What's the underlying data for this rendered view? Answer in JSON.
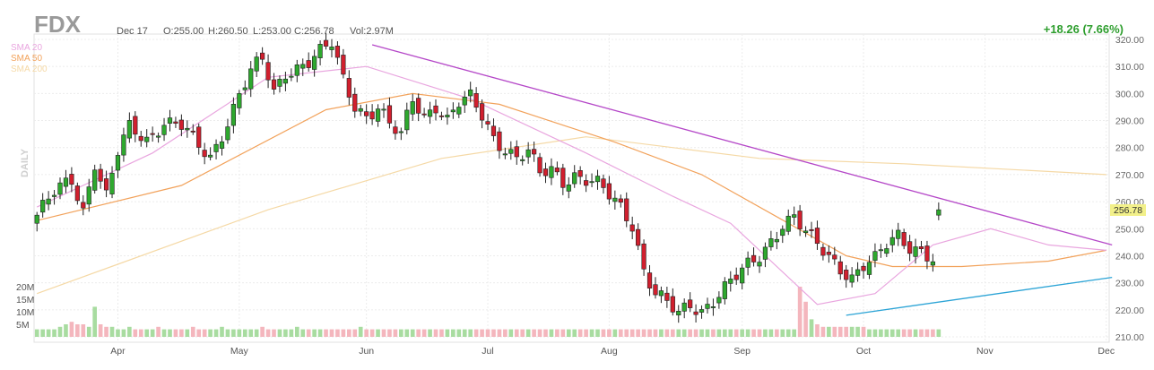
{
  "header": {
    "ticker": "FDX",
    "date": "Dec 17",
    "open": "O:255.00",
    "high": "H:260.50",
    "low": "L:253.00",
    "close": "C:256.78",
    "volume": "Vol:2.97M",
    "change": "+18.26 (7.66%)"
  },
  "legend": [
    {
      "label": "SMA 20",
      "color": "#e9a6df"
    },
    {
      "label": "SMA 50",
      "color": "#f2a25b"
    },
    {
      "label": "SMA 200",
      "color": "#f5d9a6"
    }
  ],
  "side_label": "DAILY",
  "last_price_label": "256.78",
  "colors": {
    "up": "#2ea82e",
    "down": "#d11f2e",
    "vol_up": "#a8dca0",
    "vol_down": "#f4b6bd",
    "trend_down": "#b548c8",
    "trend_up": "#2ca4d6"
  },
  "chart_data": {
    "type": "candlestick",
    "y_ticks": [
      "320.00",
      "310.00",
      "300.00",
      "290.00",
      "280.00",
      "270.00",
      "260.00",
      "250.00",
      "240.00",
      "230.00",
      "220.00",
      "210.00"
    ],
    "volume_ticks": [
      "20M",
      "15M",
      "10M",
      "5M"
    ],
    "x_ticks": [
      "Apr",
      "May",
      "Jun",
      "Jul",
      "Aug",
      "Sep",
      "Oct",
      "Nov",
      "Dec"
    ],
    "ylim": [
      210,
      320
    ],
    "vol_max_m": 25,
    "sessions": 186,
    "month_start_index": [
      14,
      35,
      57,
      78,
      99,
      122,
      143,
      164,
      185
    ],
    "anchors": [
      [
        0,
        255
      ],
      [
        3,
        263
      ],
      [
        6,
        268
      ],
      [
        8,
        257
      ],
      [
        10,
        275
      ],
      [
        12,
        262
      ],
      [
        14,
        278
      ],
      [
        16,
        287
      ],
      [
        19,
        283
      ],
      [
        22,
        290
      ],
      [
        25,
        288
      ],
      [
        28,
        280
      ],
      [
        30,
        276
      ],
      [
        33,
        290
      ],
      [
        35,
        300
      ],
      [
        37,
        308
      ],
      [
        39,
        312
      ],
      [
        41,
        300
      ],
      [
        43,
        308
      ],
      [
        45,
        310
      ],
      [
        47,
        312
      ],
      [
        49,
        315
      ],
      [
        51,
        318
      ],
      [
        53,
        305
      ],
      [
        55,
        296
      ],
      [
        57,
        292
      ],
      [
        59,
        295
      ],
      [
        61,
        288
      ],
      [
        63,
        284
      ],
      [
        65,
        298
      ],
      [
        67,
        292
      ],
      [
        69,
        296
      ],
      [
        71,
        290
      ],
      [
        73,
        296
      ],
      [
        75,
        298
      ],
      [
        77,
        292
      ],
      [
        79,
        284
      ],
      [
        81,
        280
      ],
      [
        83,
        276
      ],
      [
        85,
        278
      ],
      [
        87,
        270
      ],
      [
        89,
        272
      ],
      [
        91,
        268
      ],
      [
        93,
        270
      ],
      [
        95,
        268
      ],
      [
        97,
        266
      ],
      [
        99,
        262
      ],
      [
        101,
        258
      ],
      [
        103,
        252
      ],
      [
        105,
        235
      ],
      [
        107,
        226
      ],
      [
        109,
        222
      ],
      [
        111,
        218
      ],
      [
        113,
        222
      ],
      [
        115,
        220
      ],
      [
        117,
        224
      ],
      [
        119,
        228
      ],
      [
        121,
        232
      ],
      [
        123,
        236
      ],
      [
        125,
        240
      ],
      [
        127,
        246
      ],
      [
        129,
        252
      ],
      [
        131,
        254
      ],
      [
        133,
        248
      ],
      [
        135,
        244
      ],
      [
        137,
        240
      ],
      [
        139,
        236
      ],
      [
        141,
        232
      ],
      [
        143,
        236
      ],
      [
        145,
        238
      ],
      [
        147,
        244
      ],
      [
        149,
        248
      ],
      [
        151,
        244
      ],
      [
        153,
        242
      ],
      [
        155,
        238
      ],
      [
        156,
        257
      ]
    ],
    "sma20": [
      [
        0,
        258
      ],
      [
        20,
        278
      ],
      [
        40,
        306
      ],
      [
        57,
        310
      ],
      [
        75,
        298
      ],
      [
        95,
        278
      ],
      [
        110,
        262
      ],
      [
        120,
        252
      ],
      [
        135,
        222
      ],
      [
        145,
        226
      ],
      [
        155,
        244
      ],
      [
        165,
        250
      ],
      [
        175,
        244
      ],
      [
        185,
        242
      ]
    ],
    "sma50": [
      [
        0,
        253
      ],
      [
        25,
        266
      ],
      [
        50,
        294
      ],
      [
        65,
        300
      ],
      [
        80,
        296
      ],
      [
        100,
        282
      ],
      [
        115,
        270
      ],
      [
        130,
        252
      ],
      [
        140,
        240
      ],
      [
        148,
        236
      ],
      [
        160,
        236
      ],
      [
        175,
        238
      ],
      [
        185,
        242
      ]
    ],
    "sma200": [
      [
        0,
        226
      ],
      [
        40,
        257
      ],
      [
        70,
        276
      ],
      [
        95,
        284
      ],
      [
        125,
        276
      ],
      [
        150,
        274
      ],
      [
        185,
        270
      ]
    ],
    "trend_down": [
      [
        58,
        318
      ],
      [
        186,
        244
      ]
    ],
    "trend_up": [
      [
        140,
        218
      ],
      [
        186,
        232
      ]
    ],
    "volume_m": [
      3,
      3,
      3,
      3,
      4,
      5,
      6,
      5,
      5,
      4,
      12,
      5,
      4,
      4,
      3,
      3,
      4,
      3,
      3,
      3,
      3,
      4,
      3,
      3,
      3,
      3,
      3,
      4,
      3,
      3,
      3,
      3,
      4,
      3,
      3,
      3,
      3,
      3,
      3,
      4,
      3,
      3,
      3,
      3,
      3,
      4,
      3,
      3,
      3,
      3,
      3,
      3,
      3,
      3,
      3,
      3,
      4,
      3,
      3,
      3,
      3,
      3,
      3,
      3,
      3,
      3,
      3,
      3,
      3,
      3,
      3,
      3,
      3,
      3,
      3,
      3,
      3,
      3,
      3,
      3,
      3,
      3,
      3,
      3,
      3,
      3,
      3,
      3,
      3,
      3,
      3,
      3,
      3,
      3,
      3,
      3,
      3,
      3,
      3,
      3,
      3,
      3,
      3,
      3,
      3,
      3,
      3,
      3,
      3,
      3,
      3,
      3,
      3,
      3,
      3,
      3,
      3,
      3,
      3,
      3,
      3,
      3,
      3,
      3,
      3,
      3,
      3,
      3,
      3,
      3,
      3,
      3,
      20,
      14,
      7,
      5,
      4,
      4,
      4,
      4,
      4,
      4,
      4,
      4,
      3,
      3,
      3,
      3,
      3,
      3,
      3,
      3,
      3,
      3,
      3,
      3,
      3,
      3,
      3,
      3,
      3,
      3,
      3,
      3,
      3,
      3,
      3,
      3,
      3,
      3,
      3,
      3,
      3,
      3,
      3,
      3,
      3,
      3,
      3,
      3,
      3,
      3,
      3,
      3,
      3,
      3,
      3,
      3,
      3,
      3,
      3,
      3
    ]
  }
}
